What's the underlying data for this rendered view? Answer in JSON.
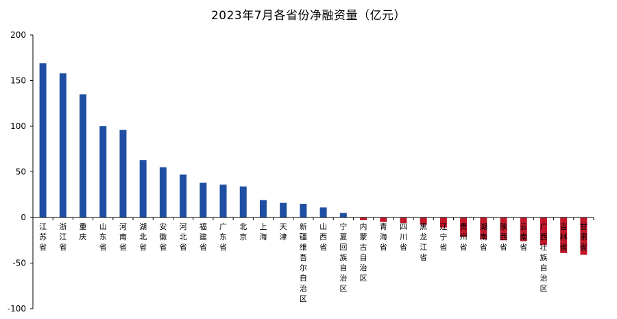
{
  "chart_data": {
    "type": "bar",
    "title": "2023年7月各省份净融资量（亿元）",
    "xlabel": "",
    "ylabel": "",
    "ylim": [
      -100,
      200
    ],
    "yticks": [
      -100,
      -50,
      0,
      50,
      100,
      150,
      200
    ],
    "grid": false,
    "legend": "none",
    "colors": {
      "positive": "#1f4fa3",
      "negative": "#c0182a",
      "axis": "#000000"
    },
    "categories": [
      "江苏省",
      "浙江省",
      "重庆",
      "山东省",
      "河南省",
      "湖北省",
      "安徽省",
      "河北省",
      "福建省",
      "广东省",
      "北京",
      "上海",
      "天津",
      "新疆维吾尔自治区",
      "山西省",
      "宁夏回族自治区",
      "内蒙古自治区",
      "青海省",
      "四川省",
      "黑龙江省",
      "辽宁省",
      "贵州省",
      "湖南省",
      "陕西省",
      "云南省",
      "广西壮族自治区",
      "吉林省",
      "甘肃省"
    ],
    "values": [
      169,
      158,
      135,
      100,
      96,
      63,
      55,
      47,
      38,
      36,
      34,
      19,
      16,
      15,
      11,
      5,
      -3,
      -5,
      -6,
      -8,
      -11,
      -21,
      -24,
      -25,
      -26,
      -30,
      -39,
      -41
    ]
  }
}
